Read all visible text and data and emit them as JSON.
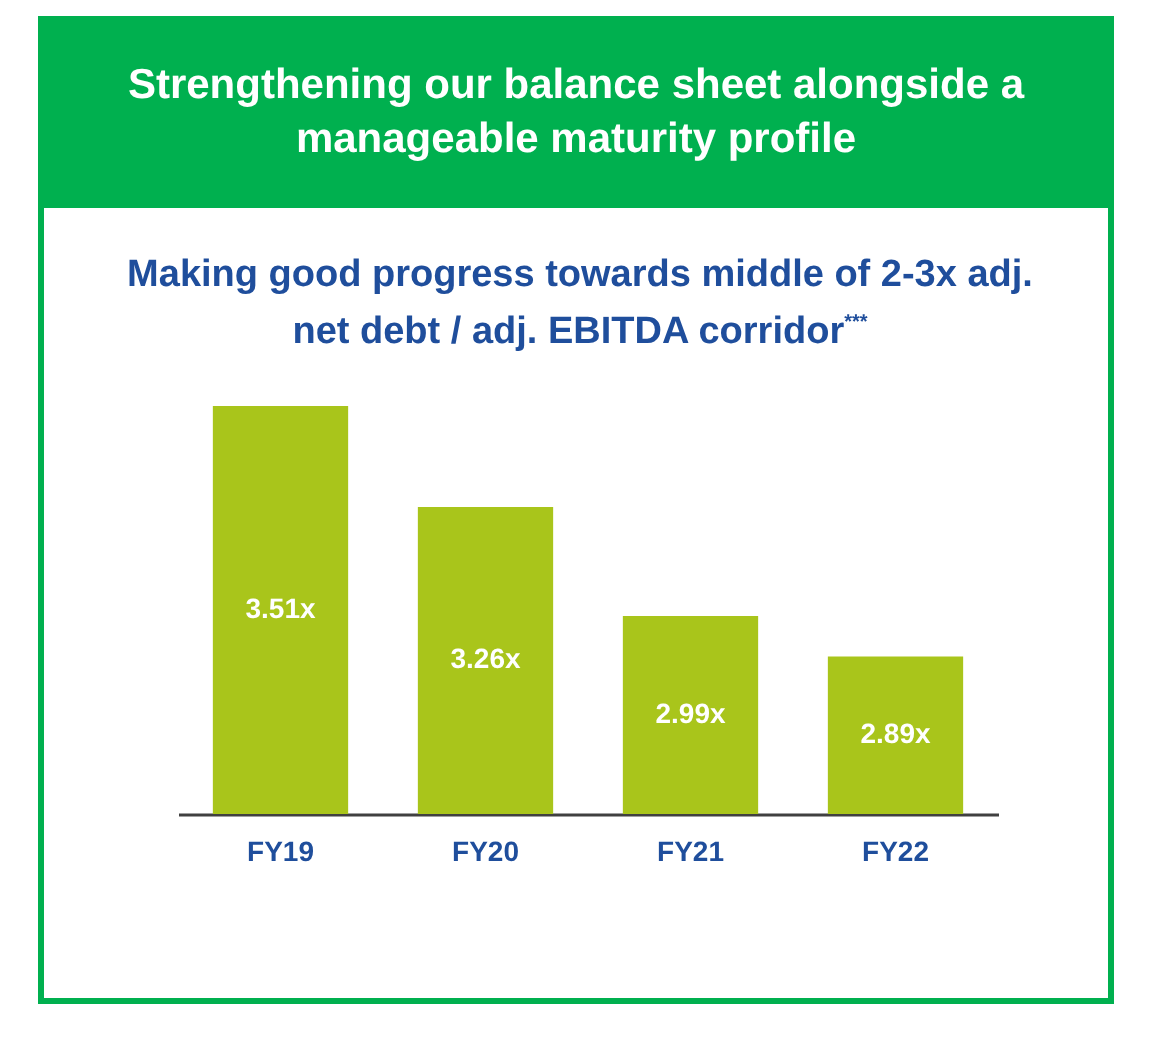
{
  "chart_data": {
    "type": "bar",
    "title": "Strengthening our balance sheet alongside a manageable maturity profile",
    "subtitle": "Making good progress towards middle of 2-3x adj. net debt / adj. EBITDA corridor$^{***}$",
    "categories": [
      "FY19",
      "FY20",
      "FY21",
      "FY22"
    ],
    "values": [
      3.51,
      3.26,
      2.99,
      2.89
    ],
    "value_labels": [
      "3.51x",
      "3.26x",
      "2.99x",
      "2.89x"
    ],
    "color": "#a9c51b",
    "ylim": [
      2.5,
      3.51
    ]
  }
}
